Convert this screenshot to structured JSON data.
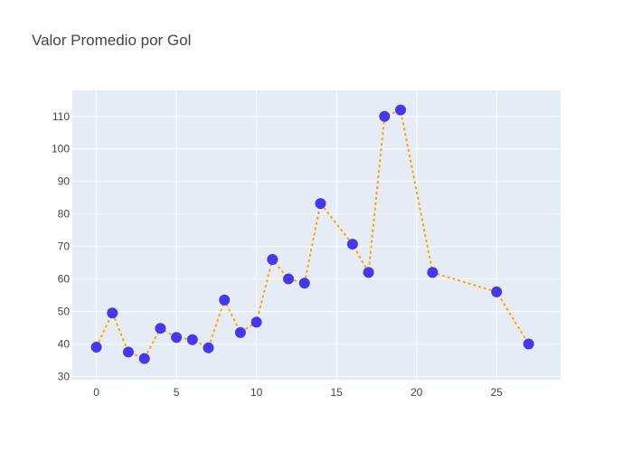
{
  "chart_data": {
    "type": "scatter",
    "title": "Valor Promedio por Gol",
    "xlabel": "",
    "ylabel": "",
    "xlim": [
      -1.5,
      29
    ],
    "ylim": [
      29,
      118
    ],
    "x_ticks": [
      0,
      5,
      10,
      15,
      20,
      25
    ],
    "y_ticks": [
      30,
      40,
      50,
      60,
      70,
      80,
      90,
      100,
      110
    ],
    "grid": true,
    "legend": "none",
    "mode": "lines+markers",
    "series": [
      {
        "x": [
          0,
          1,
          2,
          3,
          4,
          5,
          6,
          7,
          8,
          9,
          10,
          11,
          12,
          13,
          14,
          16,
          17,
          18,
          19,
          21,
          25,
          27
        ],
        "values": [
          39,
          49.5,
          37.5,
          35.5,
          44.8,
          42,
          41.3,
          38.8,
          53.5,
          43.5,
          46.7,
          66,
          60,
          58.7,
          83.2,
          70.7,
          62,
          110,
          112,
          62,
          56,
          40
        ]
      }
    ],
    "colors": {
      "marker": "#3b2ef0",
      "line": "#ffa500",
      "plot_bg": "#e5ecf6",
      "grid": "#ffffff",
      "text": "#444444"
    }
  }
}
